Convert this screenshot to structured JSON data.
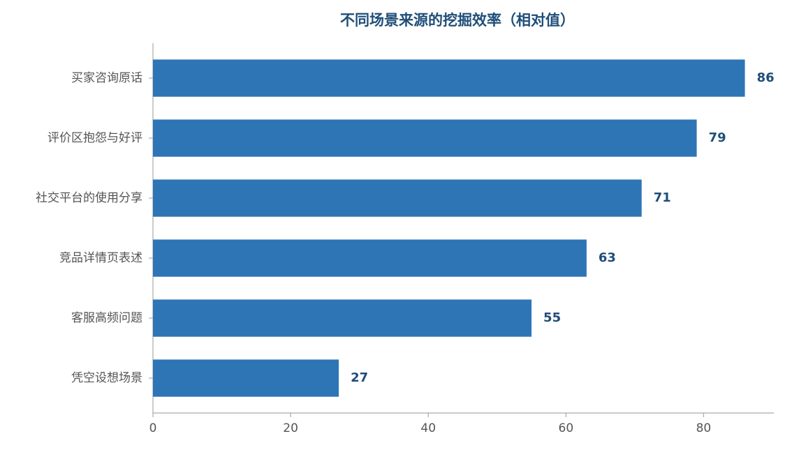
{
  "chart_data": {
    "type": "barh",
    "title": "不同场景来源的挖掘效率（相对值）",
    "categories": [
      "买家咨询原话",
      "评价区抱怨与好评",
      "社交平台的使用分享",
      "竞品详情页表述",
      "客服高频问题",
      "凭空设想场景"
    ],
    "values": [
      86,
      79,
      71,
      63,
      55,
      27
    ],
    "color": "#2e75b6",
    "xlim": [
      0,
      90
    ],
    "xticks": [
      0,
      20,
      40,
      60,
      80
    ],
    "grid": false
  }
}
